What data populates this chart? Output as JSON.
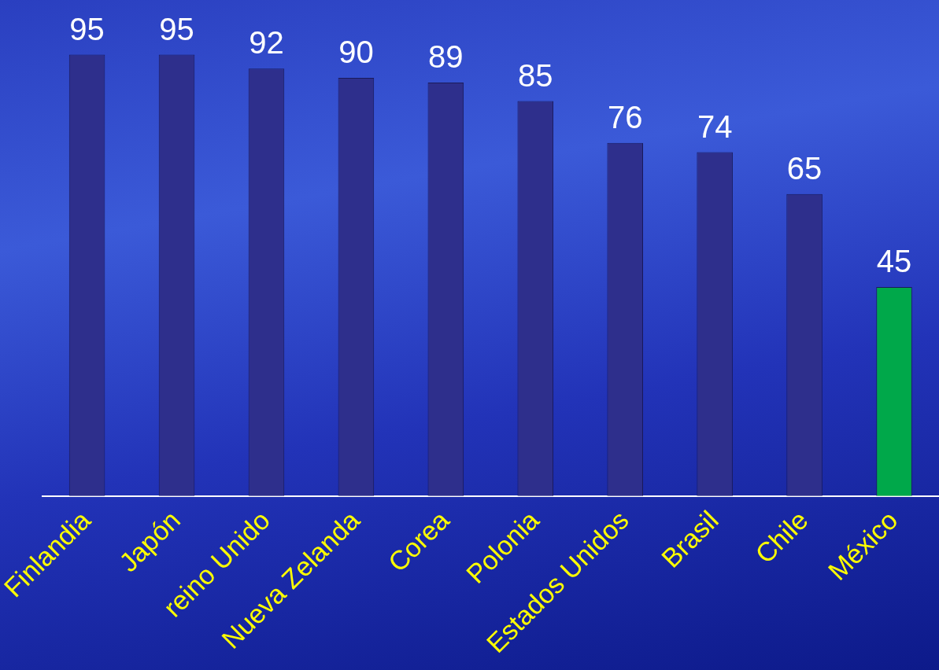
{
  "chart_data": {
    "type": "bar",
    "categories": [
      "Finlandia",
      "Japón",
      "reino Unido",
      "Nueva Zelanda",
      "Corea",
      "Polonia",
      "Estados Unidos",
      "Brasil",
      "Chile",
      "México"
    ],
    "values": [
      95,
      95,
      92,
      90,
      89,
      85,
      76,
      74,
      65,
      45
    ],
    "colors": [
      "#2e2f8c",
      "#2e2f8c",
      "#2e2f8c",
      "#2e2f8c",
      "#2e2f8c",
      "#2e2f8c",
      "#2e2f8c",
      "#2e2f8c",
      "#2e2f8c",
      "#00a84a"
    ],
    "data_labels": true,
    "grid": false,
    "legend": false
  }
}
